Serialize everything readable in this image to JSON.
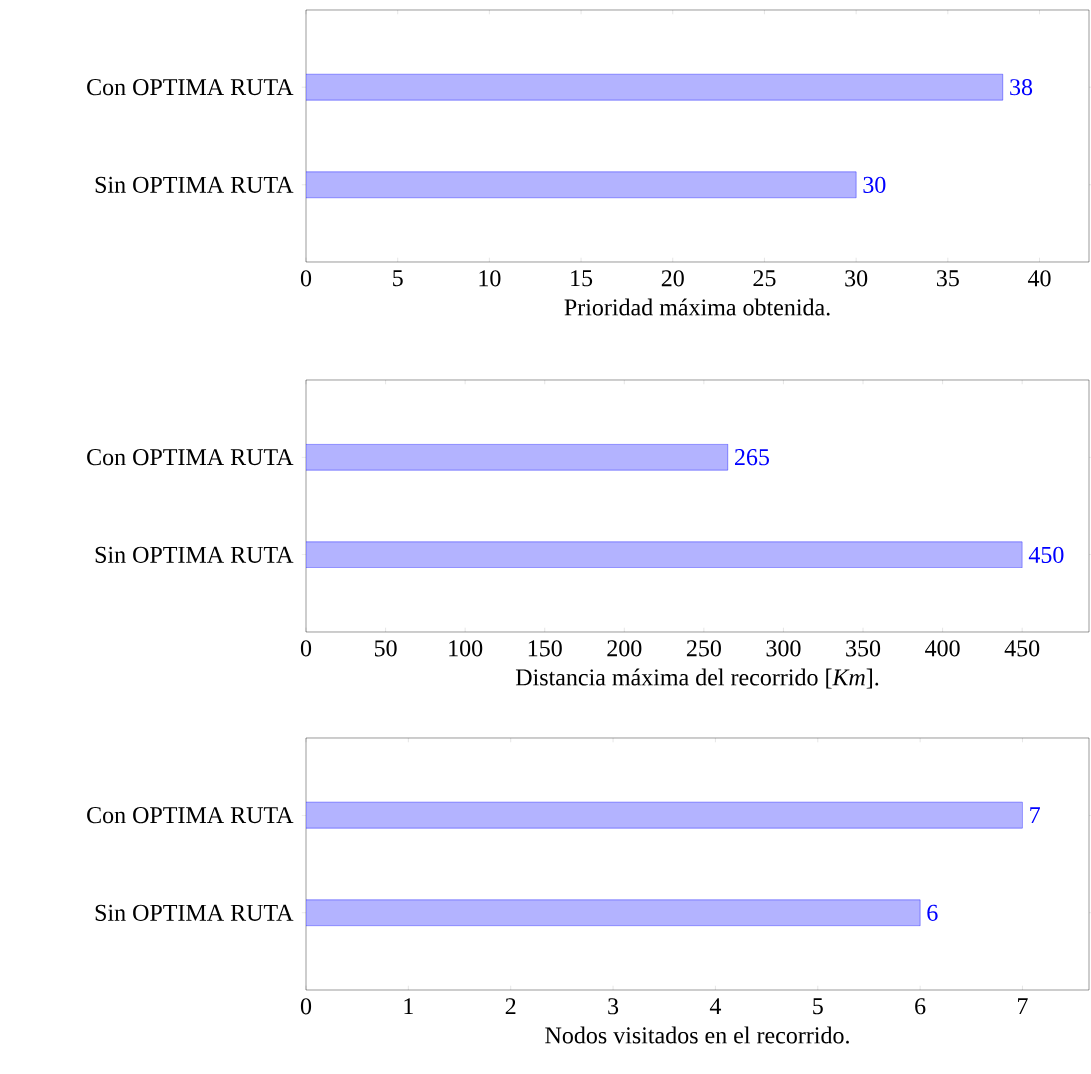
{
  "chart_data": [
    {
      "type": "bar",
      "orientation": "horizontal",
      "categories": [
        "Con OPTIMA RUTA",
        "Sin OPTIMA RUTA"
      ],
      "values": [
        38,
        30
      ],
      "color": "#b3b3ff",
      "data_labels": true,
      "xlim": [
        0,
        42.7
      ],
      "xticks": [
        0,
        5,
        10,
        15,
        20,
        25,
        30,
        35,
        40
      ],
      "xlabel": "Prioridad máxima obtenida."
    },
    {
      "type": "bar",
      "orientation": "horizontal",
      "categories": [
        "Con OPTIMA RUTA",
        "Sin OPTIMA RUTA"
      ],
      "values": [
        265,
        450
      ],
      "color": "#b3b3ff",
      "data_labels": true,
      "xlim": [
        0,
        492
      ],
      "xticks": [
        0,
        50,
        100,
        150,
        200,
        250,
        300,
        350,
        400,
        450
      ],
      "xlabel": "Distancia máxima del recorrido [*Km*]."
    },
    {
      "type": "bar",
      "orientation": "horizontal",
      "categories": [
        "Con OPTIMA RUTA",
        "Sin OPTIMA RUTA"
      ],
      "values": [
        7,
        6
      ],
      "color": "#b3b3ff",
      "data_labels": true,
      "xlim": [
        0,
        7.65
      ],
      "xticks": [
        0,
        1,
        2,
        3,
        4,
        5,
        6,
        7
      ],
      "xlabel": "Nodos visitados en el recorrido."
    }
  ]
}
